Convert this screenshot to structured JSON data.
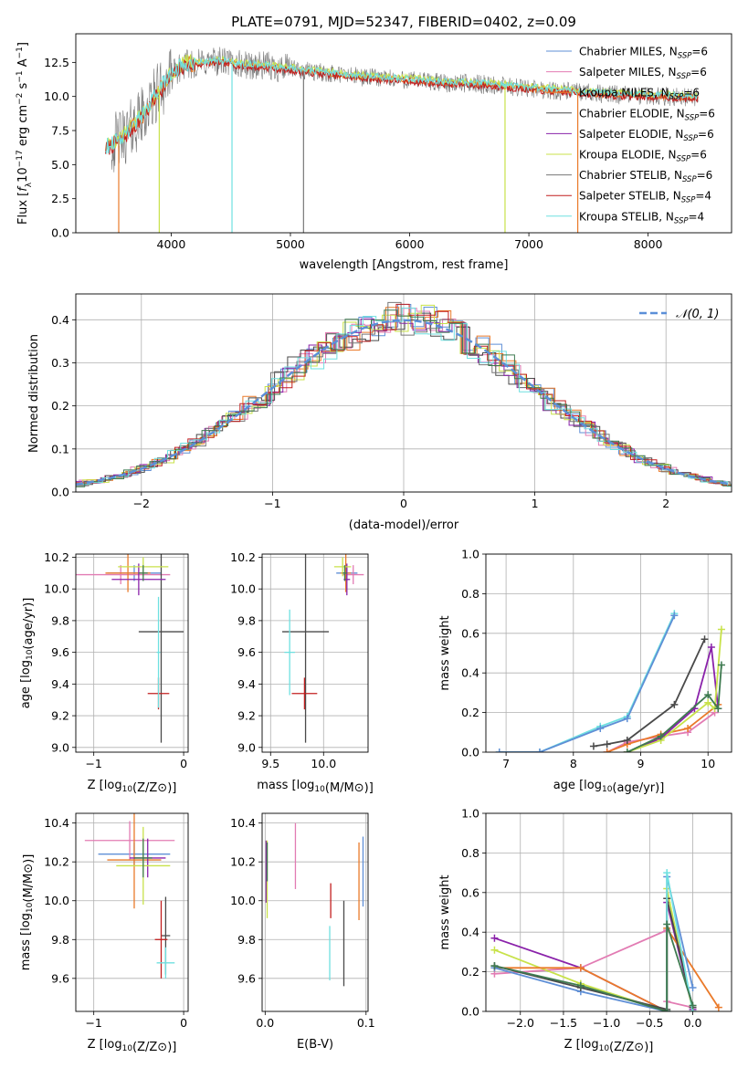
{
  "figure": {
    "title": "PLATE=0791, MJD=52347, FIBERID=0402, z=0.09"
  },
  "colors": {
    "chabrier_miles": "#5f8fd6",
    "salpeter_miles": "#e27bb3",
    "kroupa_miles": "#ea7a2a",
    "chabrier_elodie": "#4a4a4a",
    "salpeter_elodie": "#8a22aa",
    "kroupa_elodie": "#c8e24a",
    "chabrier_stelib": "#777777",
    "salpeter_stelib": "#c21f1f",
    "kroupa_stelib": "#6fe0e0",
    "green": "#3e7a50",
    "grid": "#b0b0b0",
    "gaussian": "#5b8fd8"
  },
  "chart_data": [
    {
      "id": "spectrum",
      "type": "line",
      "xlabel": "wavelength [Angstrom, rest frame]",
      "ylabel": "Flux [f_λ10^-17 erg cm^-2 s^-1 A^-1]",
      "xlim": [
        3200,
        8700
      ],
      "ylim": [
        0,
        14.6
      ],
      "xticks": [
        "4000",
        "5000",
        "6000",
        "7000",
        "8000"
      ],
      "yticks": [
        "0.0",
        "2.5",
        "5.0",
        "7.5",
        "10.0",
        "12.5"
      ],
      "grid": false,
      "legend_position": "top-right",
      "legend": [
        {
          "label": "Chabrier MILES, N_SSP=6",
          "color": "#5f8fd6"
        },
        {
          "label": "Salpeter MILES, N_SSP=6",
          "color": "#e27bb3"
        },
        {
          "label": "Kroupa MILES, N_SSP=6",
          "color": "#ea7a2a"
        },
        {
          "label": "Chabrier ELODIE, N_SSP=6",
          "color": "#4a4a4a"
        },
        {
          "label": "Salpeter ELODIE, N_SSP=6",
          "color": "#8a22aa"
        },
        {
          "label": "Kroupa ELODIE, N_SSP=6",
          "color": "#c8e24a"
        },
        {
          "label": "Chabrier STELIB, N_SSP=6",
          "color": "#777777"
        },
        {
          "label": "Salpeter STELIB, N_SSP=4",
          "color": "#c21f1f"
        },
        {
          "label": "Kroupa STELIB, N_SSP=4",
          "color": "#6fe0e0"
        }
      ],
      "continuum": {
        "x": [
          3450,
          3600,
          3700,
          3800,
          3900,
          4000,
          4100,
          4200,
          4400,
          4600,
          4800,
          5000,
          5200,
          5500,
          5800,
          6000,
          6300,
          6600,
          7000,
          7400,
          7800,
          8200,
          8400
        ],
        "y": [
          6.2,
          7.0,
          8.0,
          9.0,
          10.5,
          11.5,
          12.3,
          12.4,
          12.6,
          12.3,
          12.2,
          12.0,
          11.8,
          11.5,
          11.3,
          11.2,
          11.0,
          10.9,
          10.6,
          10.3,
          10.1,
          10.0,
          9.9
        ]
      }
    },
    {
      "id": "residuals",
      "type": "line",
      "xlabel": "(data-model)/error",
      "ylabel": "Normed distribution",
      "xlim": [
        -2.5,
        2.5
      ],
      "ylim": [
        0,
        0.46
      ],
      "xticks": [
        "−2",
        "−1",
        "0",
        "1",
        "2"
      ],
      "yticks": [
        "0.0",
        "0.1",
        "0.2",
        "0.3",
        "0.4"
      ],
      "grid": true,
      "legend_position": "top-right",
      "gaussian_label": "𝒩(0, 1)",
      "gaussian": {
        "mean": 0,
        "sigma": 1
      }
    },
    {
      "id": "age_vs_Z",
      "type": "scatter",
      "xlabel": "Z [log10(Z/Z⊙)]",
      "ylabel": "age  [log10(age/yr)]",
      "xlim": [
        -1.2,
        0.05
      ],
      "ylim": [
        8.97,
        10.22
      ],
      "xticks": [
        "−1",
        "0"
      ],
      "yticks": [
        "9.0",
        "9.2",
        "9.4",
        "9.6",
        "9.8",
        "10.0",
        "10.2"
      ],
      "grid": true,
      "errorbars": [
        {
          "x": -0.55,
          "y": 10.1,
          "xerr": 0.3,
          "yerr": 0.05,
          "color": "#5f8fd6"
        },
        {
          "x": -0.7,
          "y": 10.09,
          "xerr": 0.55,
          "yerr": 0.06,
          "color": "#e27bb3"
        },
        {
          "x": -0.62,
          "y": 10.1,
          "xerr": 0.25,
          "yerr": 0.12,
          "color": "#ea7a2a"
        },
        {
          "x": -0.25,
          "y": 9.73,
          "xerr": 0.25,
          "yerr": 0.7,
          "color": "#4a4a4a"
        },
        {
          "x": -0.5,
          "y": 10.06,
          "xerr": 0.3,
          "yerr": 0.1,
          "color": "#8a22aa"
        },
        {
          "x": -0.45,
          "y": 10.14,
          "xerr": 0.28,
          "yerr": 0.06,
          "color": "#c8e24a"
        },
        {
          "x": -0.45,
          "y": 10.1,
          "xerr": 0.05,
          "yerr": 0.05,
          "color": "#3e7a50"
        },
        {
          "x": -0.28,
          "y": 9.34,
          "xerr": 0.12,
          "yerr": 0.1,
          "color": "#c21f1f"
        },
        {
          "x": -0.28,
          "y": 9.6,
          "xerr": 0.02,
          "yerr": 0.35,
          "color": "#6fe0e0"
        }
      ]
    },
    {
      "id": "age_vs_mass",
      "type": "scatter",
      "xlabel": "mass [log10(M/M⊙)]",
      "ylabel": "",
      "xlim": [
        9.42,
        10.42
      ],
      "ylim": [
        8.97,
        10.22
      ],
      "xticks": [
        "9.5",
        "10.0"
      ],
      "yticks": [
        "9.0",
        "9.2",
        "9.4",
        "9.6",
        "9.8",
        "10.0",
        "10.2"
      ],
      "grid": true,
      "errorbars": [
        {
          "x": 10.22,
          "y": 10.1,
          "xerr": 0.1,
          "yerr": 0.05,
          "color": "#5f8fd6"
        },
        {
          "x": 10.28,
          "y": 10.09,
          "xerr": 0.1,
          "yerr": 0.06,
          "color": "#e27bb3"
        },
        {
          "x": 10.21,
          "y": 10.1,
          "xerr": 0.05,
          "yerr": 0.12,
          "color": "#ea7a2a"
        },
        {
          "x": 9.83,
          "y": 9.73,
          "xerr": 0.22,
          "yerr": 0.7,
          "color": "#4a4a4a"
        },
        {
          "x": 10.22,
          "y": 10.06,
          "xerr": 0.03,
          "yerr": 0.1,
          "color": "#8a22aa"
        },
        {
          "x": 10.18,
          "y": 10.14,
          "xerr": 0.08,
          "yerr": 0.06,
          "color": "#c8e24a"
        },
        {
          "x": 10.2,
          "y": 10.1,
          "xerr": 0.02,
          "yerr": 0.05,
          "color": "#3e7a50"
        },
        {
          "x": 9.82,
          "y": 9.34,
          "xerr": 0.12,
          "yerr": 0.1,
          "color": "#c21f1f"
        },
        {
          "x": 9.68,
          "y": 9.6,
          "xerr": 0.05,
          "yerr": 0.27,
          "color": "#6fe0e0"
        }
      ]
    },
    {
      "id": "mass_weight_vs_age",
      "type": "line",
      "xlabel": "age  [log10(age/yr)]",
      "ylabel": "mass weight",
      "xlim": [
        6.7,
        10.35
      ],
      "ylim": [
        0,
        1.0
      ],
      "xticks": [
        "7",
        "8",
        "9",
        "10"
      ],
      "yticks": [
        "0.0",
        "0.2",
        "0.4",
        "0.6",
        "0.8",
        "1.0"
      ],
      "grid": true,
      "series": [
        {
          "color": "#6fe0e0",
          "x": [
            6.9,
            7.5,
            8.4,
            8.8,
            9.5
          ],
          "y": [
            0.0,
            0.0,
            0.13,
            0.18,
            0.7
          ]
        },
        {
          "color": "#5f8fd6",
          "x": [
            6.9,
            7.5,
            8.4,
            8.8,
            9.5
          ],
          "y": [
            0.0,
            0.0,
            0.12,
            0.17,
            0.69
          ]
        },
        {
          "color": "#e27bb3",
          "x": [
            8.5,
            8.8,
            9.3,
            9.7,
            10.1
          ],
          "y": [
            0.0,
            0.05,
            0.08,
            0.1,
            0.2
          ]
        },
        {
          "color": "#ea7a2a",
          "x": [
            8.5,
            8.8,
            9.3,
            9.7,
            10.15
          ],
          "y": [
            0.0,
            0.04,
            0.09,
            0.12,
            0.24
          ]
        },
        {
          "color": "#4a4a4a",
          "x": [
            8.3,
            8.5,
            8.8,
            9.5,
            9.95
          ],
          "y": [
            0.03,
            0.04,
            0.06,
            0.24,
            0.57
          ]
        },
        {
          "color": "#8a22aa",
          "x": [
            8.8,
            9.3,
            9.8,
            10.05,
            10.15
          ],
          "y": [
            0.0,
            0.07,
            0.22,
            0.53,
            0.22
          ]
        },
        {
          "color": "#c8e24a",
          "x": [
            8.8,
            9.3,
            10.0,
            10.1,
            10.2
          ],
          "y": [
            0.0,
            0.06,
            0.25,
            0.22,
            0.62
          ]
        },
        {
          "color": "#3e7a50",
          "x": [
            8.8,
            9.3,
            10.0,
            10.15,
            10.2
          ],
          "y": [
            0.0,
            0.08,
            0.29,
            0.22,
            0.44
          ]
        }
      ]
    },
    {
      "id": "mass_vs_Z",
      "type": "scatter",
      "xlabel": "Z [log10(Z/Z⊙)]",
      "ylabel": "mass [log10(M/M⊙)]",
      "xlim": [
        -1.2,
        0.05
      ],
      "ylim": [
        9.43,
        10.45
      ],
      "xticks": [
        "−1",
        "0"
      ],
      "yticks": [
        "9.6",
        "9.8",
        "10.0",
        "10.2",
        "10.4"
      ],
      "grid": true,
      "errorbars": [
        {
          "x": -0.55,
          "y": 10.24,
          "xerr": 0.4,
          "yerr": 0.06,
          "color": "#5f8fd6"
        },
        {
          "x": -0.6,
          "y": 10.31,
          "xerr": 0.5,
          "yerr": 0.1,
          "color": "#e27bb3"
        },
        {
          "x": -0.55,
          "y": 10.21,
          "xerr": 0.3,
          "yerr": 0.25,
          "color": "#ea7a2a"
        },
        {
          "x": -0.2,
          "y": 9.82,
          "xerr": 0.05,
          "yerr": 0.2,
          "color": "#4a4a4a"
        },
        {
          "x": -0.4,
          "y": 10.22,
          "xerr": 0.2,
          "yerr": 0.1,
          "color": "#8a22aa"
        },
        {
          "x": -0.45,
          "y": 10.18,
          "xerr": 0.3,
          "yerr": 0.2,
          "color": "#c8e24a"
        },
        {
          "x": -0.45,
          "y": 10.22,
          "xerr": 0.1,
          "yerr": 0.1,
          "color": "#3e7a50"
        },
        {
          "x": -0.25,
          "y": 9.8,
          "xerr": 0.07,
          "yerr": 0.2,
          "color": "#c21f1f"
        },
        {
          "x": -0.2,
          "y": 9.68,
          "xerr": 0.1,
          "yerr": 0.08,
          "color": "#6fe0e0"
        }
      ]
    },
    {
      "id": "mass_vs_ebv",
      "type": "scatter",
      "xlabel": "E(B-V)",
      "ylabel": "",
      "xlim": [
        -0.003,
        0.102
      ],
      "ylim": [
        9.43,
        10.45
      ],
      "xticks": [
        "0.0",
        "0.1"
      ],
      "yticks": [
        "9.6",
        "9.8",
        "10.0",
        "10.2",
        "10.4"
      ],
      "grid": true,
      "errorbars": [
        {
          "x": 0.097,
          "y": 10.15,
          "xerr": 0.0,
          "yerr": 0.18,
          "color": "#5f8fd6"
        },
        {
          "x": 0.03,
          "y": 10.23,
          "xerr": 0.0,
          "yerr": 0.17,
          "color": "#e27bb3"
        },
        {
          "x": 0.093,
          "y": 10.1,
          "xerr": 0.0,
          "yerr": 0.2,
          "color": "#ea7a2a"
        },
        {
          "x": 0.078,
          "y": 9.78,
          "xerr": 0.0,
          "yerr": 0.22,
          "color": "#4a4a4a"
        },
        {
          "x": 0.001,
          "y": 10.15,
          "xerr": 0.0,
          "yerr": 0.16,
          "color": "#8a22aa"
        },
        {
          "x": 0.002,
          "y": 10.11,
          "xerr": 0.0,
          "yerr": 0.2,
          "color": "#c8e24a"
        },
        {
          "x": 0.002,
          "y": 10.2,
          "xerr": 0.0,
          "yerr": 0.1,
          "color": "#3e7a50"
        },
        {
          "x": 0.065,
          "y": 10.0,
          "xerr": 0.0,
          "yerr": 0.09,
          "color": "#c21f1f"
        },
        {
          "x": 0.064,
          "y": 9.73,
          "xerr": 0.0,
          "yerr": 0.14,
          "color": "#6fe0e0"
        }
      ]
    },
    {
      "id": "mass_weight_vs_Z",
      "type": "line",
      "xlabel": "Z [log10(Z/Z⊙)]",
      "ylabel": "mass weight",
      "xlim": [
        -2.4,
        0.45
      ],
      "ylim": [
        0,
        1.0
      ],
      "xticks": [
        "−2.0",
        "−1.5",
        "−1.0",
        "−0.5",
        "0.0"
      ],
      "yticks": [
        "0.0",
        "0.2",
        "0.4",
        "0.6",
        "0.8",
        "1.0"
      ],
      "grid": true,
      "series": [
        {
          "color": "#8a22aa",
          "x": [
            -2.3,
            -1.3,
            -0.3,
            -0.3,
            0.0
          ],
          "y": [
            0.37,
            0.22,
            0.0,
            0.55,
            0.01
          ]
        },
        {
          "color": "#e27bb3",
          "x": [
            -2.3,
            -1.3,
            -0.3,
            -0.3,
            0.0
          ],
          "y": [
            0.19,
            0.22,
            0.41,
            0.05,
            0.02
          ]
        },
        {
          "color": "#c8e24a",
          "x": [
            -2.3,
            -1.3,
            -0.3,
            -0.3,
            0.0
          ],
          "y": [
            0.31,
            0.14,
            0.0,
            0.62,
            0.0
          ]
        },
        {
          "color": "#ea7a2a",
          "x": [
            -2.3,
            -1.3,
            -0.3,
            -0.3,
            0.3
          ],
          "y": [
            0.22,
            0.22,
            0.0,
            0.42,
            0.02
          ]
        },
        {
          "color": "#5f8fd6",
          "x": [
            -2.3,
            -1.3,
            -0.3,
            -0.3,
            0.0
          ],
          "y": [
            0.22,
            0.1,
            0.0,
            0.68,
            0.12
          ]
        },
        {
          "color": "#4a4a4a",
          "x": [
            -2.3,
            -1.3,
            -0.3,
            -0.3,
            0.0
          ],
          "y": [
            0.23,
            0.12,
            0.01,
            0.57,
            0.02
          ]
        },
        {
          "color": "#6fe0e0",
          "x": [
            -0.3,
            -0.3,
            0.0
          ],
          "y": [
            0.0,
            0.7,
            0.0
          ]
        },
        {
          "color": "#3e7a50",
          "x": [
            -2.3,
            -1.3,
            -0.3,
            -0.3,
            0.0
          ],
          "y": [
            0.23,
            0.13,
            0.0,
            0.44,
            0.03
          ]
        }
      ]
    }
  ]
}
